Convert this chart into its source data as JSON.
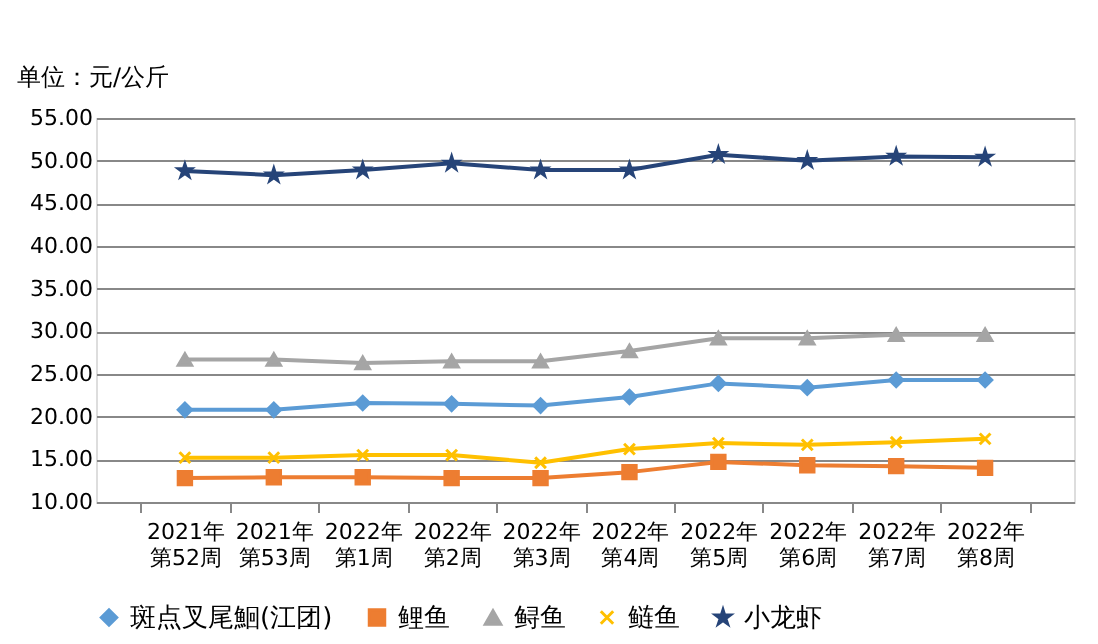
{
  "chart_data": {
    "type": "line",
    "ylabel": "单位：元/公斤",
    "categories": [
      "2021年第52周",
      "2021年第53周",
      "2022年第1周",
      "2022年第2周",
      "2022年第3周",
      "2022年第4周",
      "2022年第5周",
      "2022年第6周",
      "2022年第7周",
      "2022年第8周"
    ],
    "series": [
      {
        "name": "斑点叉尾鮰(江团)",
        "color": "#5b9bd5",
        "marker": "diamond",
        "values": [
          20.8,
          20.8,
          21.6,
          21.5,
          21.3,
          22.3,
          23.9,
          23.4,
          24.3,
          24.3
        ]
      },
      {
        "name": "鲤鱼",
        "color": "#ed7d31",
        "marker": "square",
        "values": [
          12.8,
          12.9,
          12.9,
          12.8,
          12.8,
          13.5,
          14.7,
          14.3,
          14.2,
          14.0
        ]
      },
      {
        "name": "鲟鱼",
        "color": "#a5a5a5",
        "marker": "triangle",
        "values": [
          26.7,
          26.7,
          26.3,
          26.5,
          26.5,
          27.7,
          29.2,
          29.2,
          29.6,
          29.6
        ]
      },
      {
        "name": "鲢鱼",
        "color": "#ffc000",
        "marker": "cross",
        "values": [
          15.2,
          15.2,
          15.5,
          15.5,
          14.6,
          16.2,
          16.9,
          16.7,
          17.0,
          17.4
        ]
      },
      {
        "name": "小龙虾",
        "color": "#264478",
        "marker": "star",
        "values": [
          48.8,
          48.3,
          48.9,
          49.7,
          48.9,
          48.9,
          50.7,
          50.0,
          50.5,
          50.4
        ]
      }
    ],
    "ylim": [
      10,
      55
    ],
    "yticks": [
      {
        "value": 10,
        "label": "10.00"
      },
      {
        "value": 15,
        "label": "15.00"
      },
      {
        "value": 20,
        "label": "20.00"
      },
      {
        "value": 25,
        "label": "25.00"
      },
      {
        "value": 30,
        "label": "30.00"
      },
      {
        "value": 35,
        "label": "35.00"
      },
      {
        "value": 40,
        "label": "40.00"
      },
      {
        "value": 45,
        "label": "45.00"
      },
      {
        "value": 50,
        "label": "50.00"
      },
      {
        "value": 55,
        "label": "55.00"
      }
    ],
    "grid": "y",
    "legend": "bottom",
    "line_style": "solid"
  }
}
